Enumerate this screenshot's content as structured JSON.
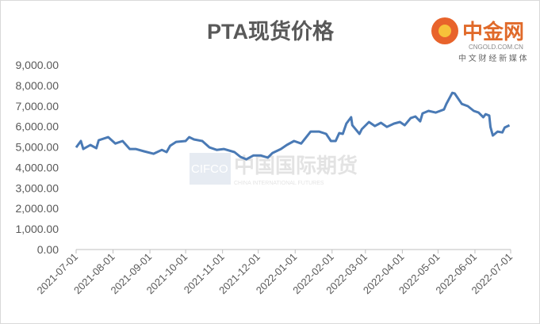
{
  "chart_data": {
    "type": "line",
    "title": "PTA现货价格",
    "xlabel": "",
    "ylabel": "",
    "ylim": [
      0,
      9000
    ],
    "y_ticks": [
      "0.00",
      "1,000.00",
      "2,000.00",
      "3,000.00",
      "4,000.00",
      "5,000.00",
      "6,000.00",
      "7,000.00",
      "8,000.00",
      "9,000.00"
    ],
    "x_range": [
      "2021-07-01",
      "2022-07-01"
    ],
    "x_ticks": [
      "2021-07-01",
      "2021-08-01",
      "2021-09-01",
      "2021-10-01",
      "2021-11-01",
      "2021-12-01",
      "2022-01-01",
      "2022-02-01",
      "2022-03-01",
      "2022-04-01",
      "2022-05-01",
      "2022-06-01",
      "2022-07-01"
    ],
    "grid": false,
    "legend": "none",
    "line_color": "#4a7ab5",
    "series": [
      {
        "x": [
          "2021-07-01",
          "2021-07-05",
          "2021-07-07",
          "2021-07-13",
          "2021-07-18",
          "2021-07-20",
          "2021-07-28",
          "2021-08-03",
          "2021-08-09",
          "2021-08-15",
          "2021-08-20",
          "2021-08-27",
          "2021-09-04",
          "2021-09-11",
          "2021-09-15",
          "2021-09-18",
          "2021-09-23",
          "2021-10-01",
          "2021-10-04",
          "2021-10-08",
          "2021-10-15",
          "2021-10-21",
          "2021-10-27",
          "2021-11-02",
          "2021-11-11",
          "2021-11-16",
          "2021-11-21",
          "2021-11-27",
          "2021-12-03",
          "2021-12-09",
          "2021-12-13",
          "2021-12-20",
          "2021-12-25",
          "2021-12-31",
          "2022-01-06",
          "2022-01-14",
          "2022-01-21",
          "2022-01-27",
          "2022-01-31",
          "2022-02-04",
          "2022-02-07",
          "2022-02-10",
          "2022-02-13",
          "2022-02-17",
          "2022-02-18",
          "2022-02-24",
          "2022-02-26",
          "2022-03-04",
          "2022-03-09",
          "2022-03-14",
          "2022-03-19",
          "2022-03-25",
          "2022-03-30",
          "2022-04-03",
          "2022-04-08",
          "2022-04-12",
          "2022-04-16",
          "2022-04-18",
          "2022-04-23",
          "2022-04-29",
          "2022-05-06",
          "2022-05-08",
          "2022-05-13",
          "2022-05-15",
          "2022-05-21",
          "2022-05-26",
          "2022-05-31",
          "2022-06-04",
          "2022-06-08",
          "2022-06-10",
          "2022-06-13",
          "2022-06-14",
          "2022-06-16",
          "2022-06-20",
          "2022-06-24",
          "2022-06-26",
          "2022-06-30"
        ],
        "y": [
          4980,
          5290,
          4900,
          5100,
          4940,
          5330,
          5480,
          5170,
          5290,
          4900,
          4900,
          4790,
          4670,
          4860,
          4750,
          5060,
          5250,
          5290,
          5480,
          5370,
          5290,
          4980,
          4860,
          4900,
          4750,
          4520,
          4400,
          4590,
          4590,
          4480,
          4710,
          4900,
          5100,
          5290,
          5170,
          5750,
          5750,
          5640,
          5290,
          5290,
          5680,
          5640,
          6140,
          6450,
          6060,
          5640,
          5870,
          6220,
          6020,
          6180,
          5980,
          6140,
          6220,
          6060,
          6410,
          6490,
          6250,
          6640,
          6760,
          6680,
          6830,
          7100,
          7640,
          7610,
          7100,
          6990,
          6760,
          6680,
          6450,
          6600,
          6530,
          5980,
          5560,
          5750,
          5710,
          5950,
          6060
        ]
      }
    ]
  },
  "watermarks": {
    "cifco_logo": "CIFCO",
    "cifco_cn": "中国国际期货",
    "cifco_en": "CHINA INTERNATIONAL FUTURES",
    "cngold_cn": "中金网",
    "cngold_url": "CNGOLD.COM.CN",
    "cngold_slogan": "中 文 财 经 新 媒 体"
  }
}
